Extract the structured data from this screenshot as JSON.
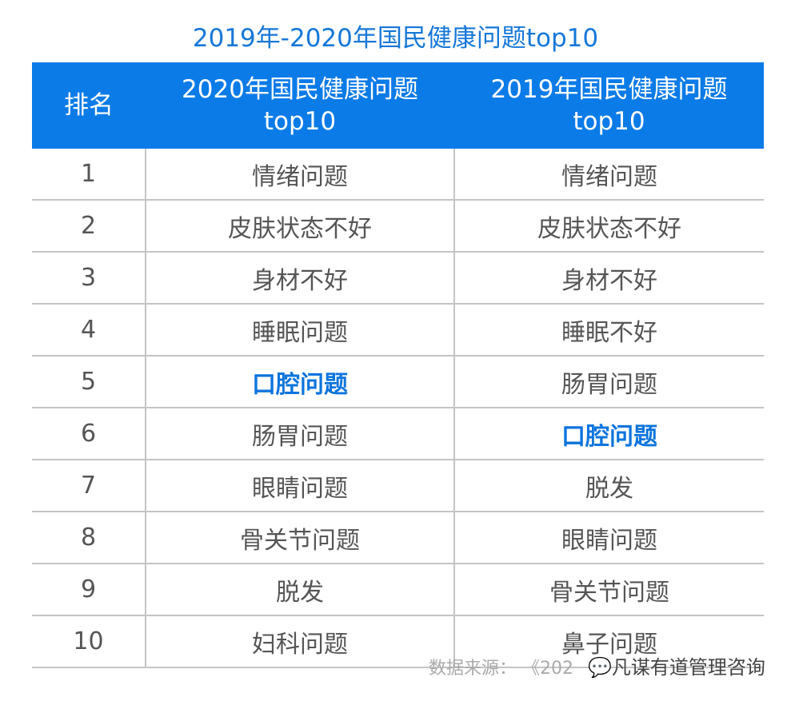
{
  "title": "2019年-2020年国民健康问题top10",
  "headers": {
    "rank": "排名",
    "col2020_line1": "2020年国民健康问题",
    "col2020_line2": "top10",
    "col2019_line1": "2019年国民健康问题",
    "col2019_line2": "top10"
  },
  "highlight_color": "#0b74dd",
  "header_color": "#0b7be8",
  "rows": [
    {
      "rank": "1",
      "y2020": "情绪问题",
      "y2019": "情绪问题"
    },
    {
      "rank": "2",
      "y2020": "皮肤状态不好",
      "y2019": "皮肤状态不好"
    },
    {
      "rank": "3",
      "y2020": "身材不好",
      "y2019": "身材不好"
    },
    {
      "rank": "4",
      "y2020": "睡眠问题",
      "y2019": "睡眠不好"
    },
    {
      "rank": "5",
      "y2020": "口腔问题",
      "y2019": "肠胃问题",
      "highlight": "y2020"
    },
    {
      "rank": "6",
      "y2020": "肠胃问题",
      "y2019": "口腔问题",
      "highlight": "y2019"
    },
    {
      "rank": "7",
      "y2020": "眼睛问题",
      "y2019": "脱发"
    },
    {
      "rank": "8",
      "y2020": "骨关节问题",
      "y2019": "眼睛问题"
    },
    {
      "rank": "9",
      "y2020": "脱发",
      "y2019": "骨关节问题"
    },
    {
      "rank": "10",
      "y2020": "妇科问题",
      "y2019": "鼻子问题"
    }
  ],
  "source": "数据来源：  《202",
  "watermark": "凡谋有道管理咨询",
  "watermark_icon": "wechat-icon"
}
